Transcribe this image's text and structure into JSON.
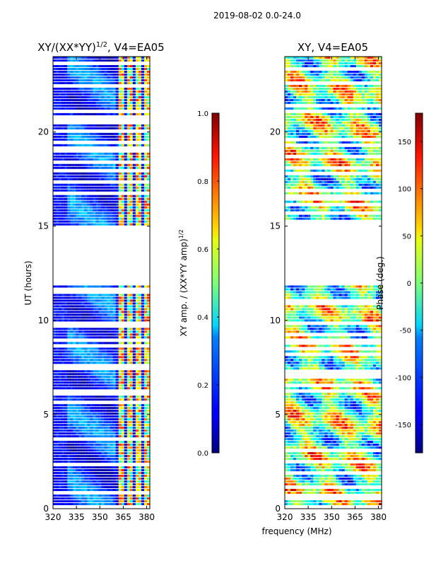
{
  "chart_data": {
    "suptitle": "2019-08-02 0.0-24.0",
    "xlabel": "frequency (MHz)",
    "ylabel": "UT (hours)",
    "panels": [
      {
        "type": "heatmap",
        "title": "XY/(XX*YY)",
        "title_exponent": "1/2",
        "title_suffix": ", V4=EA05",
        "xlim": [
          320,
          382
        ],
        "ylim": [
          0,
          24
        ],
        "xticks": [
          "320",
          "335",
          "350",
          "365",
          "380"
        ],
        "yticks": [
          "0",
          "5",
          "10",
          "15",
          "20"
        ],
        "colormap": "jet",
        "colorbar": {
          "label": "XY amp. / (XX*YY amp)",
          "label_exponent": "1/2",
          "range": [
            0.0,
            1.0
          ],
          "ticks": [
            "0.0",
            "0.2",
            "0.4",
            "0.6",
            "0.8",
            "1.0"
          ]
        },
        "data_gaps_ut": [
          [
            11.8,
            15.0
          ]
        ]
      },
      {
        "type": "heatmap",
        "title": "XY, V4=EA05",
        "xlim": [
          320,
          382
        ],
        "ylim": [
          0,
          24
        ],
        "xticks": [
          "320",
          "335",
          "350",
          "365",
          "380"
        ],
        "yticks": [
          "0",
          "5",
          "10",
          "15",
          "20"
        ],
        "colormap": "jet",
        "colorbar": {
          "label": "Phase (deg.)",
          "range": [
            -180,
            180
          ],
          "ticks": [
            "-150",
            "-100",
            "-50",
            "0",
            "50",
            "100",
            "150"
          ]
        },
        "data_gaps_ut": [
          [
            11.8,
            15.0
          ]
        ]
      }
    ]
  }
}
